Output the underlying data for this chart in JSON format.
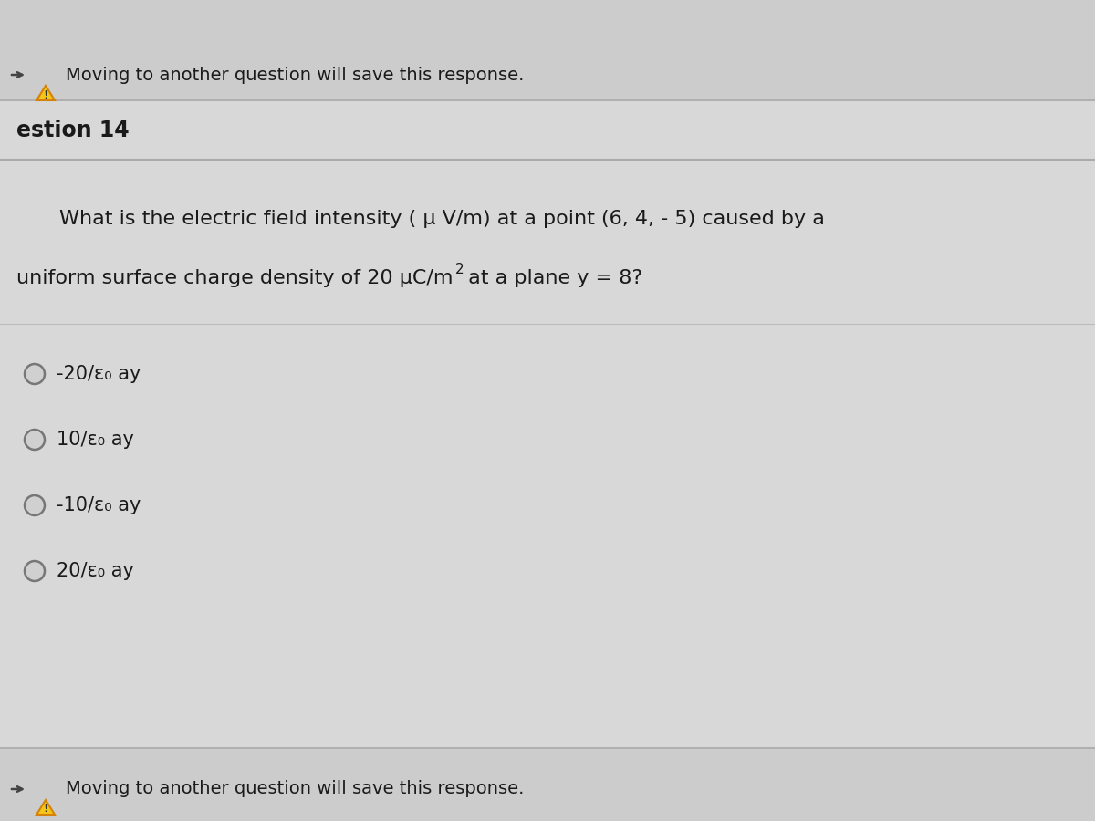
{
  "bg_color": "#d0d0d0",
  "top_bar_color": "#c8c8c8",
  "middle_area_color": "#d8d8d8",
  "border_color": "#aaaaaa",
  "text_color": "#1a1a1a",
  "warning_orange": "#d4820a",
  "warning_yellow": "#f5c518",
  "top_warning_text": "Moving to another question will save this response.",
  "question_label": "estion 14",
  "question_line1": "What is the electric field intensity ( μ V/m) at a point (6, 4, - 5) caused by a",
  "question_line2_part1": "uniform surface charge density of 20 μC/m",
  "question_line2_sup": "2",
  "question_line2_part2": " at a plane y = 8?",
  "options": [
    "-20/ε₀ ay",
    "10/ε₀ ay",
    "-10/ε₀ ay",
    "20/ε₀ ay"
  ],
  "bottom_warning_text": "Moving to another question will save this response.",
  "fig_width": 12.0,
  "fig_height": 9.0,
  "dpi": 100
}
